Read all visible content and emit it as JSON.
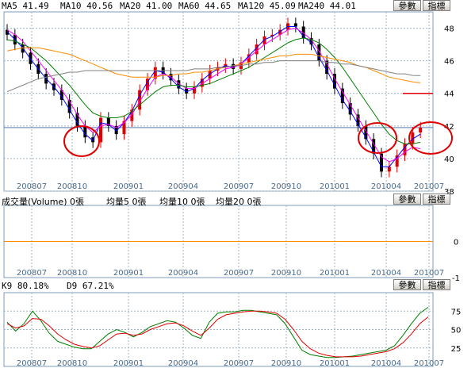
{
  "buttons": {
    "params": "參數",
    "indicator": "指標"
  },
  "panel_price": {
    "ma_labels": [
      {
        "text": "MA5 41.49"
      },
      {
        "text": "MA10 40.56"
      },
      {
        "text": "MA20 41.00"
      },
      {
        "text": "MA60 44.65"
      },
      {
        "text": "MA120 45.09"
      },
      {
        "text": "MA240 44.01"
      }
    ]
  },
  "panel_volume": {
    "labels": [
      {
        "text": "成交量(Volume) 0張"
      },
      {
        "text": "均量5 0張"
      },
      {
        "text": "均量10 0張"
      },
      {
        "text": "均量20 0張"
      }
    ]
  },
  "panel_kd": {
    "labels": [
      {
        "text": "K9 80.18%"
      },
      {
        "text": "D9 67.21%"
      }
    ]
  },
  "colors": {
    "background": "#ffffff",
    "grid": "#9fb6c6",
    "up": "#e00000",
    "down": "#000000",
    "ma5": "#0000ff",
    "ma10": "#ff00ff",
    "ma20": "#008000",
    "ma60": "#ff8c00",
    "ma120": "#808080",
    "ma240": "#999999",
    "k": "#008000",
    "d": "#e00000",
    "highlight": "#e00000",
    "volume_zero": "#ff8c00"
  },
  "chart_data": [
    {
      "type": "candlestick",
      "x_ticks": [
        "200807",
        "200810",
        "200901",
        "200904",
        "200907",
        "200910",
        "201001",
        "201004",
        "201007"
      ],
      "ylim": [
        38,
        49
      ],
      "y_ticks": [
        38,
        40,
        42,
        44,
        46,
        48
      ],
      "close": [
        47.6,
        47.0,
        46.5,
        45.8,
        45.2,
        44.6,
        44.2,
        43.6,
        42.8,
        42.0,
        41.3,
        41.0,
        42.5,
        42.0,
        41.5,
        42.3,
        43.0,
        44.2,
        44.9,
        45.6,
        45.2,
        44.8,
        44.3,
        44.0,
        44.4,
        44.9,
        45.4,
        45.6,
        45.8,
        45.5,
        45.9,
        46.4,
        47.0,
        47.5,
        47.6,
        47.9,
        48.3,
        48.1,
        47.4,
        47.0,
        46.0,
        45.2,
        44.3,
        43.4,
        42.7,
        42.0,
        41.2,
        40.3,
        39.2,
        39.5,
        40.2,
        40.9,
        41.6,
        41.9
      ],
      "highlights": [
        "200810",
        "201002",
        "201007"
      ],
      "hline_red": 44,
      "hline_blue": 41.9,
      "series": [
        {
          "name": "MA5",
          "values": [
            47.8,
            47.3,
            46.8,
            46.1,
            45.5,
            44.9,
            44.4,
            43.8,
            43.0,
            42.2,
            41.5,
            41.1,
            42.2,
            42.1,
            41.7,
            42.2,
            42.9,
            43.9,
            44.7,
            45.4,
            45.3,
            44.9,
            44.4,
            44.1,
            44.3,
            44.8,
            45.2,
            45.5,
            45.7,
            45.6,
            45.8,
            46.3,
            46.8,
            47.3,
            47.5,
            47.8,
            48.1,
            48.1,
            47.5,
            47.1,
            46.2,
            45.4,
            44.5,
            43.6,
            42.9,
            42.1,
            41.3,
            40.4,
            39.5,
            39.5,
            40.1,
            40.7,
            41.2,
            41.5
          ]
        },
        {
          "name": "MA10",
          "values": [
            47.9,
            47.6,
            47.2,
            46.6,
            46.0,
            45.4,
            44.8,
            44.2,
            43.5,
            42.7,
            42.0,
            41.6,
            42.0,
            42.1,
            41.9,
            42.2,
            42.7,
            43.5,
            44.3,
            45.0,
            45.2,
            45.0,
            44.6,
            44.3,
            44.3,
            44.6,
            44.9,
            45.2,
            45.5,
            45.6,
            45.8,
            46.2,
            46.6,
            47.0,
            47.3,
            47.6,
            47.9,
            48.0,
            47.7,
            47.3,
            46.6,
            45.8,
            44.9,
            44.1,
            43.3,
            42.5,
            41.7,
            40.9,
            40.1,
            39.8,
            40.0,
            40.4,
            40.7,
            40.6
          ]
        },
        {
          "name": "MA20",
          "values": [
            47.3,
            47.2,
            47.0,
            46.8,
            46.4,
            46.0,
            45.5,
            45.0,
            44.5,
            43.9,
            43.3,
            42.8,
            42.6,
            42.5,
            42.5,
            42.6,
            42.9,
            43.3,
            43.7,
            44.1,
            44.4,
            44.5,
            44.5,
            44.4,
            44.4,
            44.5,
            44.6,
            44.8,
            45.0,
            45.2,
            45.4,
            45.6,
            45.9,
            46.2,
            46.5,
            46.8,
            47.1,
            47.3,
            47.4,
            47.3,
            47.1,
            46.7,
            46.2,
            45.6,
            44.9,
            44.2,
            43.5,
            42.8,
            42.1,
            41.5,
            41.1,
            40.9,
            40.9,
            41.0
          ]
        },
        {
          "name": "MA60",
          "values": [
            46.6,
            46.7,
            46.8,
            46.8,
            46.8,
            46.7,
            46.6,
            46.5,
            46.4,
            46.2,
            46.0,
            45.8,
            45.6,
            45.4,
            45.2,
            45.1,
            45.0,
            45.0,
            45.0,
            45.0,
            45.1,
            45.1,
            45.2,
            45.2,
            45.3,
            45.3,
            45.4,
            45.5,
            45.6,
            45.7,
            45.8,
            45.9,
            46.0,
            46.1,
            46.2,
            46.3,
            46.3,
            46.4,
            46.4,
            46.4,
            46.3,
            46.2,
            46.1,
            46.0,
            45.9,
            45.7,
            45.6,
            45.4,
            45.2,
            45.0,
            44.9,
            44.8,
            44.7,
            44.65
          ]
        },
        {
          "name": "MA120",
          "values": [
            44.1,
            44.3,
            44.5,
            44.7,
            44.9,
            45.0,
            45.1,
            45.2,
            45.3,
            45.3,
            45.4,
            45.4,
            45.4,
            45.4,
            45.4,
            45.4,
            45.4,
            45.4,
            45.4,
            45.4,
            45.4,
            45.4,
            45.4,
            45.4,
            45.5,
            45.5,
            45.5,
            45.6,
            45.6,
            45.7,
            45.7,
            45.8,
            45.8,
            45.9,
            45.9,
            46.0,
            46.0,
            46.0,
            46.0,
            46.0,
            46.0,
            45.9,
            45.9,
            45.8,
            45.8,
            45.7,
            45.6,
            45.5,
            45.4,
            45.3,
            45.2,
            45.2,
            45.1,
            45.09
          ]
        }
      ]
    },
    {
      "type": "bar",
      "series": [
        {
          "name": "成交量(Volume)",
          "values": []
        }
      ],
      "ylim": [
        -1,
        1
      ],
      "y_ticks": [
        0,
        -1
      ]
    },
    {
      "type": "line",
      "ylim": [
        0,
        100
      ],
      "y_ticks": [
        25,
        50,
        75
      ],
      "series": [
        {
          "name": "K9",
          "values": [
            60,
            48,
            58,
            75,
            62,
            45,
            34,
            30,
            26,
            24,
            24,
            34,
            44,
            50,
            46,
            40,
            46,
            54,
            58,
            62,
            60,
            52,
            42,
            38,
            60,
            72,
            74,
            74,
            76,
            76,
            74,
            72,
            70,
            58,
            40,
            22,
            16,
            14,
            12,
            12,
            13,
            14,
            16,
            18,
            20,
            22,
            28,
            42,
            58,
            72,
            80.18
          ]
        },
        {
          "name": "D9",
          "values": [
            58,
            52,
            55,
            65,
            64,
            55,
            44,
            36,
            30,
            27,
            25,
            28,
            36,
            44,
            45,
            42,
            44,
            50,
            54,
            58,
            59,
            55,
            48,
            42,
            52,
            64,
            70,
            72,
            74,
            75,
            75,
            74,
            72,
            64,
            50,
            34,
            24,
            18,
            15,
            13,
            13,
            13,
            14,
            16,
            18,
            20,
            24,
            32,
            44,
            58,
            67.21
          ]
        }
      ]
    }
  ]
}
